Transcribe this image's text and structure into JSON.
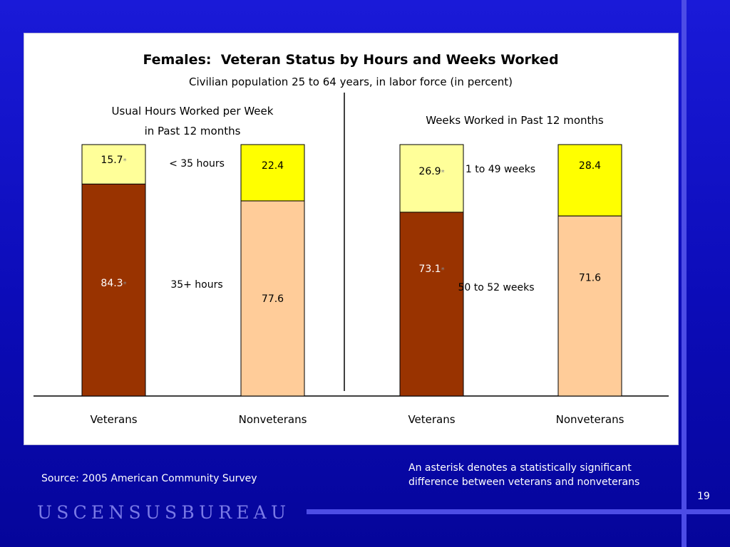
{
  "title": "Females:  Veteran Status by Hours and Weeks Worked",
  "subtitle": "Civilian population 25 to 64 years, in labor force (in percent)",
  "source": "Source: 2005 American Community Survey",
  "note_line1": "An asterisk denotes a statistically significant",
  "note_line2": "difference between veterans and nonveterans",
  "page_number": "19",
  "bureau_wordmark": "USCENSUSBUREAU",
  "colors": {
    "veteran_bottom": "#993300",
    "veteran_top": "#ffff99",
    "nonveteran_bottom": "#ffcc99",
    "nonveteran_top": "#ffff00",
    "asterisk": "#888888"
  },
  "chart_data": [
    {
      "type": "bar",
      "stacked": true,
      "heading_line1": "Usual Hours Worked per Week",
      "heading_line2": "in Past 12 months",
      "categories": [
        "Veterans",
        "Nonveterans"
      ],
      "ylim": [
        0,
        100
      ],
      "series": [
        {
          "name": "35+ hours",
          "values": [
            84.3,
            77.6
          ],
          "labels": [
            "84.3",
            "77.6"
          ],
          "significant": [
            true,
            false
          ]
        },
        {
          "name": "< 35 hours",
          "values": [
            15.7,
            22.4
          ],
          "labels": [
            "15.7",
            "22.4"
          ],
          "significant": [
            true,
            false
          ]
        }
      ]
    },
    {
      "type": "bar",
      "stacked": true,
      "heading_line1": "Weeks Worked in Past 12 months",
      "categories": [
        "Veterans",
        "Nonveterans"
      ],
      "ylim": [
        0,
        100
      ],
      "series": [
        {
          "name": "50 to 52 weeks",
          "values": [
            73.1,
            71.6
          ],
          "labels": [
            "73.1",
            "71.6"
          ],
          "significant": [
            true,
            false
          ]
        },
        {
          "name": "1 to 49 weeks",
          "values": [
            26.9,
            28.4
          ],
          "labels": [
            "26.9",
            "28.4"
          ],
          "significant": [
            true,
            false
          ]
        }
      ]
    }
  ]
}
